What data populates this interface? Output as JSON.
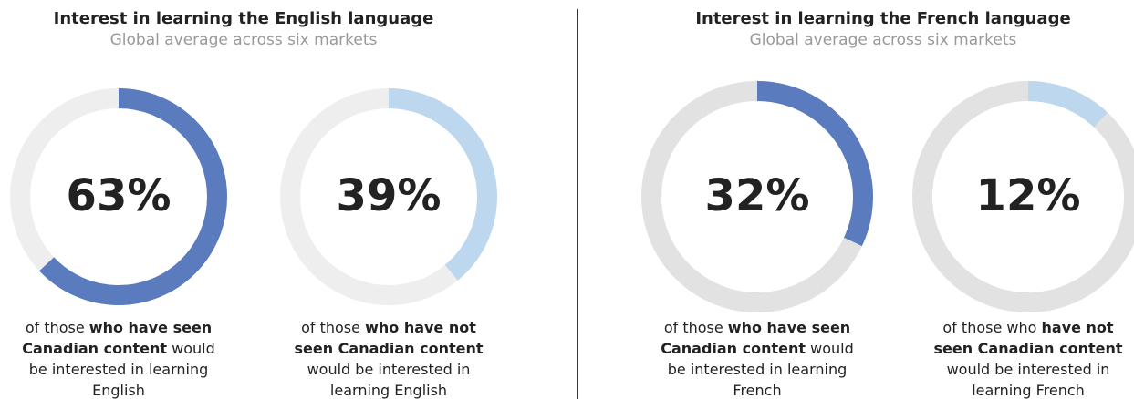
{
  "chart_data": [
    {
      "type": "donut",
      "title": "Interest in learning the English language",
      "subtitle": "Global average across six markets",
      "track_color": "#eeeeee",
      "series": [
        {
          "color": "#5b7bbf",
          "values": [
            63
          ],
          "value_labels": [
            "63%"
          ],
          "caption": [
            {
              "text": "of those",
              "bold": false
            },
            {
              "text": "who have seen Canadian content",
              "bold": true
            },
            {
              "text": "would be interested in learning English",
              "bold": false
            }
          ]
        },
        {
          "color": "#bdd7ee",
          "values": [
            39
          ],
          "value_labels": [
            "39%"
          ],
          "caption": [
            {
              "text": "of those",
              "bold": false
            },
            {
              "text": "who have not seen Canadian content",
              "bold": true
            },
            {
              "text": "would be interested in learning English",
              "bold": false
            }
          ]
        }
      ]
    },
    {
      "type": "donut",
      "title": "Interest in learning the French language",
      "subtitle": "Global average across six markets",
      "track_color": "#e2e2e2",
      "series": [
        {
          "color": "#5b7bbf",
          "values": [
            32
          ],
          "value_labels": [
            "32%"
          ],
          "caption": [
            {
              "text": "of those",
              "bold": false
            },
            {
              "text": "who have seen Canadian content",
              "bold": true
            },
            {
              "text": "would be interested in learning French",
              "bold": false
            }
          ]
        },
        {
          "color": "#bdd7ee",
          "values": [
            12
          ],
          "value_labels": [
            "12%"
          ],
          "caption": [
            {
              "text": "of those who",
              "bold": false
            },
            {
              "text": "have not seen Canadian content",
              "bold": true
            },
            {
              "text": "would be interested in learning French",
              "bold": false
            }
          ]
        }
      ]
    }
  ]
}
